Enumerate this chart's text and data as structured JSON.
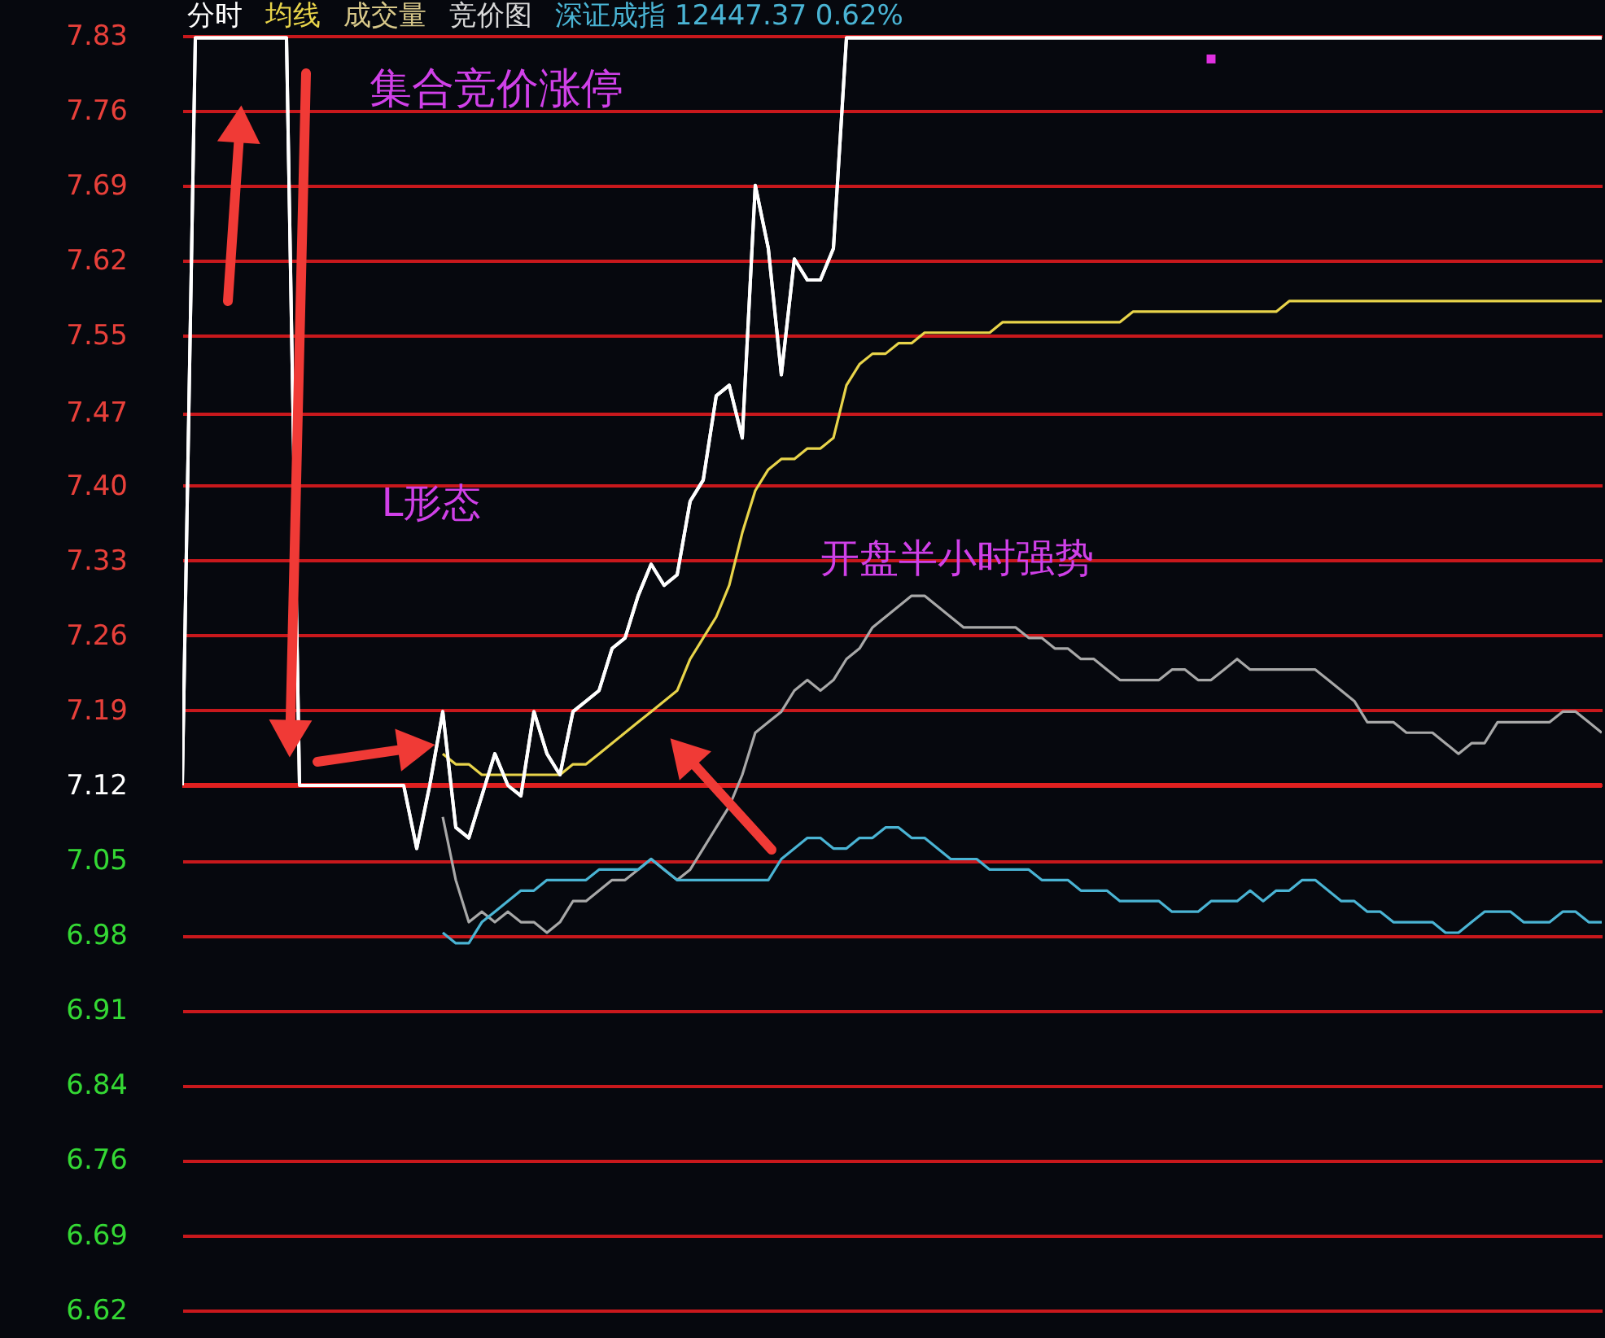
{
  "chart_data": {
    "type": "line",
    "categories": [
      null,
      null,
      null,
      null,
      null,
      null,
      null,
      null,
      null,
      null,
      null,
      null,
      null,
      null,
      null,
      null,
      null,
      null,
      null,
      null,
      null,
      null,
      null,
      null,
      null,
      null,
      null,
      null,
      null,
      null,
      null,
      null,
      null,
      null,
      null,
      null,
      null,
      null,
      null,
      null,
      null,
      null,
      null,
      null,
      null,
      null,
      null,
      null,
      null,
      null,
      null,
      null,
      null,
      null,
      null,
      null,
      null,
      null,
      null,
      null,
      null,
      null,
      null,
      null,
      null,
      null,
      null,
      null,
      null,
      null,
      null,
      null,
      null,
      null,
      null,
      null,
      null,
      null,
      null,
      null,
      null,
      null,
      null,
      null,
      null,
      null,
      null,
      null,
      null,
      null,
      null,
      null,
      null,
      null,
      null,
      null,
      null,
      null,
      null,
      null,
      null,
      null,
      null,
      null,
      null,
      null,
      null,
      null,
      null,
      null
    ],
    "series": [
      {
        "name": "分时",
        "color": "#ffffff",
        "values": [
          7.12,
          7.83,
          7.83,
          7.83,
          7.83,
          7.83,
          7.83,
          7.83,
          7.83,
          7.12,
          7.12,
          7.12,
          7.12,
          7.12,
          7.12,
          7.12,
          7.12,
          7.12,
          7.06,
          7.12,
          7.19,
          7.08,
          7.07,
          7.11,
          7.15,
          7.12,
          7.11,
          7.19,
          7.15,
          7.13,
          7.19,
          7.2,
          7.21,
          7.25,
          7.26,
          7.3,
          7.33,
          7.31,
          7.32,
          7.39,
          7.41,
          7.49,
          7.5,
          7.45,
          7.69,
          7.63,
          7.51,
          7.62,
          7.6,
          7.6,
          7.63,
          7.83,
          7.83,
          7.83,
          7.83,
          7.83,
          7.83,
          7.83,
          7.83,
          7.83,
          7.83,
          7.83,
          7.83,
          7.83,
          7.83,
          7.83,
          7.83,
          7.83,
          7.83,
          7.83,
          7.83,
          7.83,
          7.83,
          7.83,
          7.83,
          7.83,
          7.83,
          7.83,
          7.83,
          7.83,
          7.83,
          7.83,
          7.83,
          7.83,
          7.83,
          7.83,
          7.83,
          7.83,
          7.83,
          7.83,
          7.83,
          7.83,
          7.83,
          7.83,
          7.83,
          7.83,
          7.83,
          7.83,
          7.83,
          7.83,
          7.83,
          7.83,
          7.83,
          7.83,
          7.83,
          7.83,
          7.83,
          7.83,
          7.83,
          7.83
        ]
      },
      {
        "name": "均线",
        "color": "#e8d44a",
        "values": [
          null,
          null,
          null,
          null,
          null,
          null,
          null,
          null,
          null,
          null,
          null,
          null,
          null,
          null,
          null,
          null,
          null,
          null,
          null,
          null,
          7.15,
          7.14,
          7.14,
          7.13,
          7.13,
          7.13,
          7.13,
          7.13,
          7.13,
          7.13,
          7.14,
          7.14,
          7.15,
          7.16,
          7.17,
          7.18,
          7.19,
          7.2,
          7.21,
          7.24,
          7.26,
          7.28,
          7.31,
          7.36,
          7.4,
          7.42,
          7.43,
          7.43,
          7.44,
          7.44,
          7.45,
          7.5,
          7.52,
          7.53,
          7.53,
          7.54,
          7.54,
          7.55,
          7.55,
          7.55,
          7.55,
          7.55,
          7.55,
          7.56,
          7.56,
          7.56,
          7.56,
          7.56,
          7.56,
          7.56,
          7.56,
          7.56,
          7.56,
          7.57,
          7.57,
          7.57,
          7.57,
          7.57,
          7.57,
          7.57,
          7.57,
          7.57,
          7.57,
          7.57,
          7.57,
          7.58,
          7.58,
          7.58,
          7.58,
          7.58,
          7.58,
          7.58,
          7.58,
          7.58,
          7.58,
          7.58,
          7.58,
          7.58,
          7.58,
          7.58,
          7.58,
          7.58,
          7.58,
          7.58,
          7.58,
          7.58,
          7.58,
          7.58,
          7.58,
          7.58
        ]
      },
      {
        "color": "#a8a8a8",
        "values": [
          null,
          null,
          null,
          null,
          null,
          null,
          null,
          null,
          null,
          null,
          null,
          null,
          null,
          null,
          null,
          null,
          null,
          null,
          null,
          null,
          7.09,
          7.03,
          6.99,
          7.0,
          6.99,
          7.0,
          6.99,
          6.99,
          6.98,
          6.99,
          7.01,
          7.01,
          7.02,
          7.03,
          7.03,
          7.04,
          7.05,
          7.04,
          7.03,
          7.04,
          7.06,
          7.08,
          7.1,
          7.13,
          7.17,
          7.18,
          7.19,
          7.21,
          7.22,
          7.21,
          7.22,
          7.24,
          7.25,
          7.27,
          7.28,
          7.29,
          7.3,
          7.3,
          7.29,
          7.28,
          7.27,
          7.27,
          7.27,
          7.27,
          7.27,
          7.26,
          7.26,
          7.25,
          7.25,
          7.24,
          7.24,
          7.23,
          7.22,
          7.22,
          7.22,
          7.22,
          7.23,
          7.23,
          7.22,
          7.22,
          7.23,
          7.24,
          7.23,
          7.23,
          7.23,
          7.23,
          7.23,
          7.23,
          7.22,
          7.21,
          7.2,
          7.18,
          7.18,
          7.18,
          7.17,
          7.17,
          7.17,
          7.16,
          7.15,
          7.16,
          7.16,
          7.18,
          7.18,
          7.18,
          7.18,
          7.18,
          7.19,
          7.19,
          7.18,
          7.17
        ]
      },
      {
        "name": "深证成指 12447.37 0.62%",
        "color": "#4ab4d4",
        "values": [
          null,
          null,
          null,
          null,
          null,
          null,
          null,
          null,
          null,
          null,
          null,
          null,
          null,
          null,
          null,
          null,
          null,
          null,
          null,
          null,
          6.98,
          6.97,
          6.97,
          6.99,
          7.0,
          7.01,
          7.02,
          7.02,
          7.03,
          7.03,
          7.03,
          7.03,
          7.04,
          7.04,
          7.04,
          7.04,
          7.05,
          7.04,
          7.03,
          7.03,
          7.03,
          7.03,
          7.03,
          7.03,
          7.03,
          7.03,
          7.05,
          7.06,
          7.07,
          7.07,
          7.06,
          7.06,
          7.07,
          7.07,
          7.08,
          7.08,
          7.07,
          7.07,
          7.06,
          7.05,
          7.05,
          7.05,
          7.04,
          7.04,
          7.04,
          7.04,
          7.03,
          7.03,
          7.03,
          7.02,
          7.02,
          7.02,
          7.01,
          7.01,
          7.01,
          7.01,
          7.0,
          7.0,
          7.0,
          7.01,
          7.01,
          7.01,
          7.02,
          7.01,
          7.02,
          7.02,
          7.03,
          7.03,
          7.02,
          7.01,
          7.01,
          7.0,
          7.0,
          6.99,
          6.99,
          6.99,
          6.99,
          6.98,
          6.98,
          6.99,
          7.0,
          7.0,
          7.0,
          6.99,
          6.99,
          6.99,
          7.0,
          7.0,
          6.99,
          6.99
        ]
      },
      {
        "type": "scatter",
        "color": "#e030e0",
        "values": [
          null,
          null,
          null,
          null,
          null,
          null,
          null,
          null,
          null,
          null,
          null,
          null,
          null,
          null,
          null,
          null,
          null,
          null,
          null,
          null,
          null,
          null,
          null,
          null,
          null,
          null,
          null,
          null,
          null,
          null,
          null,
          null,
          null,
          null,
          null,
          null,
          null,
          null,
          null,
          null,
          null,
          null,
          null,
          null,
          null,
          null,
          null,
          null,
          null,
          null,
          null,
          null,
          null,
          null,
          null,
          null,
          null,
          null,
          null,
          null,
          null,
          null,
          null,
          null,
          null,
          null,
          null,
          null,
          null,
          null,
          null,
          null,
          null,
          null,
          null,
          null,
          null,
          null,
          null,
          7.81,
          null,
          null,
          null,
          null,
          null,
          null,
          null,
          null,
          null,
          null,
          null,
          null,
          null,
          null,
          null,
          null,
          null,
          null,
          null,
          null,
          null,
          null,
          null,
          null,
          null,
          null,
          null,
          null,
          null,
          null
        ]
      }
    ],
    "ylim": [
      6.595,
      7.832
    ],
    "yticks": [
      {
        "value": 6.6216,
        "label": "6.62"
      },
      {
        "value": 6.6928,
        "label": "6.69"
      },
      {
        "value": 6.764,
        "label": "6.76"
      },
      {
        "value": 6.8352,
        "label": "6.84"
      },
      {
        "value": 6.9064,
        "label": "6.91"
      },
      {
        "value": 6.9776,
        "label": "6.98"
      },
      {
        "value": 7.0488,
        "label": "7.05"
      },
      {
        "value": 7.12,
        "label": "7.12"
      },
      {
        "value": 7.1912,
        "label": "7.19"
      },
      {
        "value": 7.2624,
        "label": "7.26"
      },
      {
        "value": 7.3336,
        "label": "7.33"
      },
      {
        "value": 7.4048,
        "label": "7.40"
      },
      {
        "value": 7.474,
        "label": "7.47"
      },
      {
        "value": 7.5472,
        "label": "7.55"
      },
      {
        "value": 7.6184,
        "label": "7.62"
      },
      {
        "value": 7.6896,
        "label": "7.69"
      },
      {
        "value": 7.7608,
        "label": "7.76"
      },
      {
        "value": 7.832,
        "label": "7.83"
      }
    ],
    "grid": "y",
    "tick_labels": "y",
    "legend": "top left",
    "ref_lines": [
      {
        "axis": "y",
        "value": 7.12,
        "color": "#e02020"
      }
    ],
    "annotations": [
      "成交量",
      "竞价图",
      "集合竞价涨停",
      "L形态",
      "开盘半小时强势"
    ]
  }
}
